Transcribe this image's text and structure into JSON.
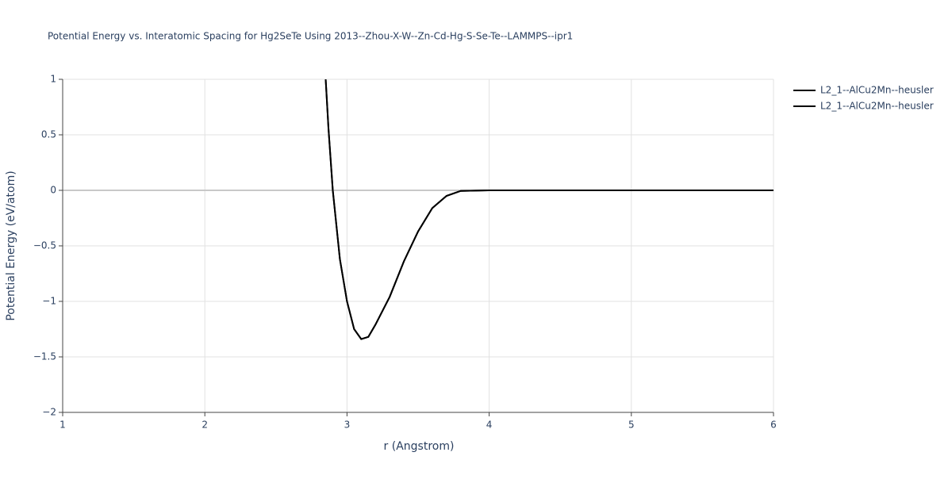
{
  "chart_data": {
    "type": "line",
    "title": "Potential Energy vs. Interatomic Spacing for Hg2SeTe Using 2013--Zhou-X-W--Zn-Cd-Hg-S-Se-Te--LAMMPS--ipr1",
    "x_label": "r (Angstrom)",
    "y_label": "Potential Energy (eV/atom)",
    "x": [
      2.85,
      2.87,
      2.9,
      2.95,
      3.0,
      3.05,
      3.1,
      3.15,
      3.2,
      3.3,
      3.4,
      3.5,
      3.6,
      3.7,
      3.8,
      4.0,
      5.0,
      6.0
    ],
    "series": [
      {
        "name": "L2_1--AlCu2Mn--heusler",
        "color": "#000000",
        "values": [
          1.0,
          0.55,
          0.0,
          -0.62,
          -1.0,
          -1.25,
          -1.34,
          -1.32,
          -1.21,
          -0.96,
          -0.64,
          -0.37,
          -0.16,
          -0.05,
          -0.005,
          0,
          0,
          0
        ]
      },
      {
        "name": "L2_1--AlCu2Mn--heusler",
        "color": "#000000",
        "values": [
          1.0,
          0.55,
          0.0,
          -0.62,
          -1.0,
          -1.25,
          -1.34,
          -1.32,
          -1.21,
          -0.96,
          -0.64,
          -0.37,
          -0.16,
          -0.05,
          -0.005,
          0,
          0,
          0
        ]
      }
    ],
    "xlim": [
      1,
      6
    ],
    "ylim": [
      -2,
      1
    ],
    "xticks": [
      1,
      2,
      3,
      4,
      5,
      6
    ],
    "yticks": [
      1,
      0.5,
      0,
      {
        "value": -0.5,
        "label": "−0.5"
      },
      {
        "value": -1,
        "label": "−1"
      },
      {
        "value": -1.5,
        "label": "−1.5"
      },
      {
        "value": -2,
        "label": "−2"
      }
    ],
    "grid": true,
    "legend": "outside-right"
  }
}
